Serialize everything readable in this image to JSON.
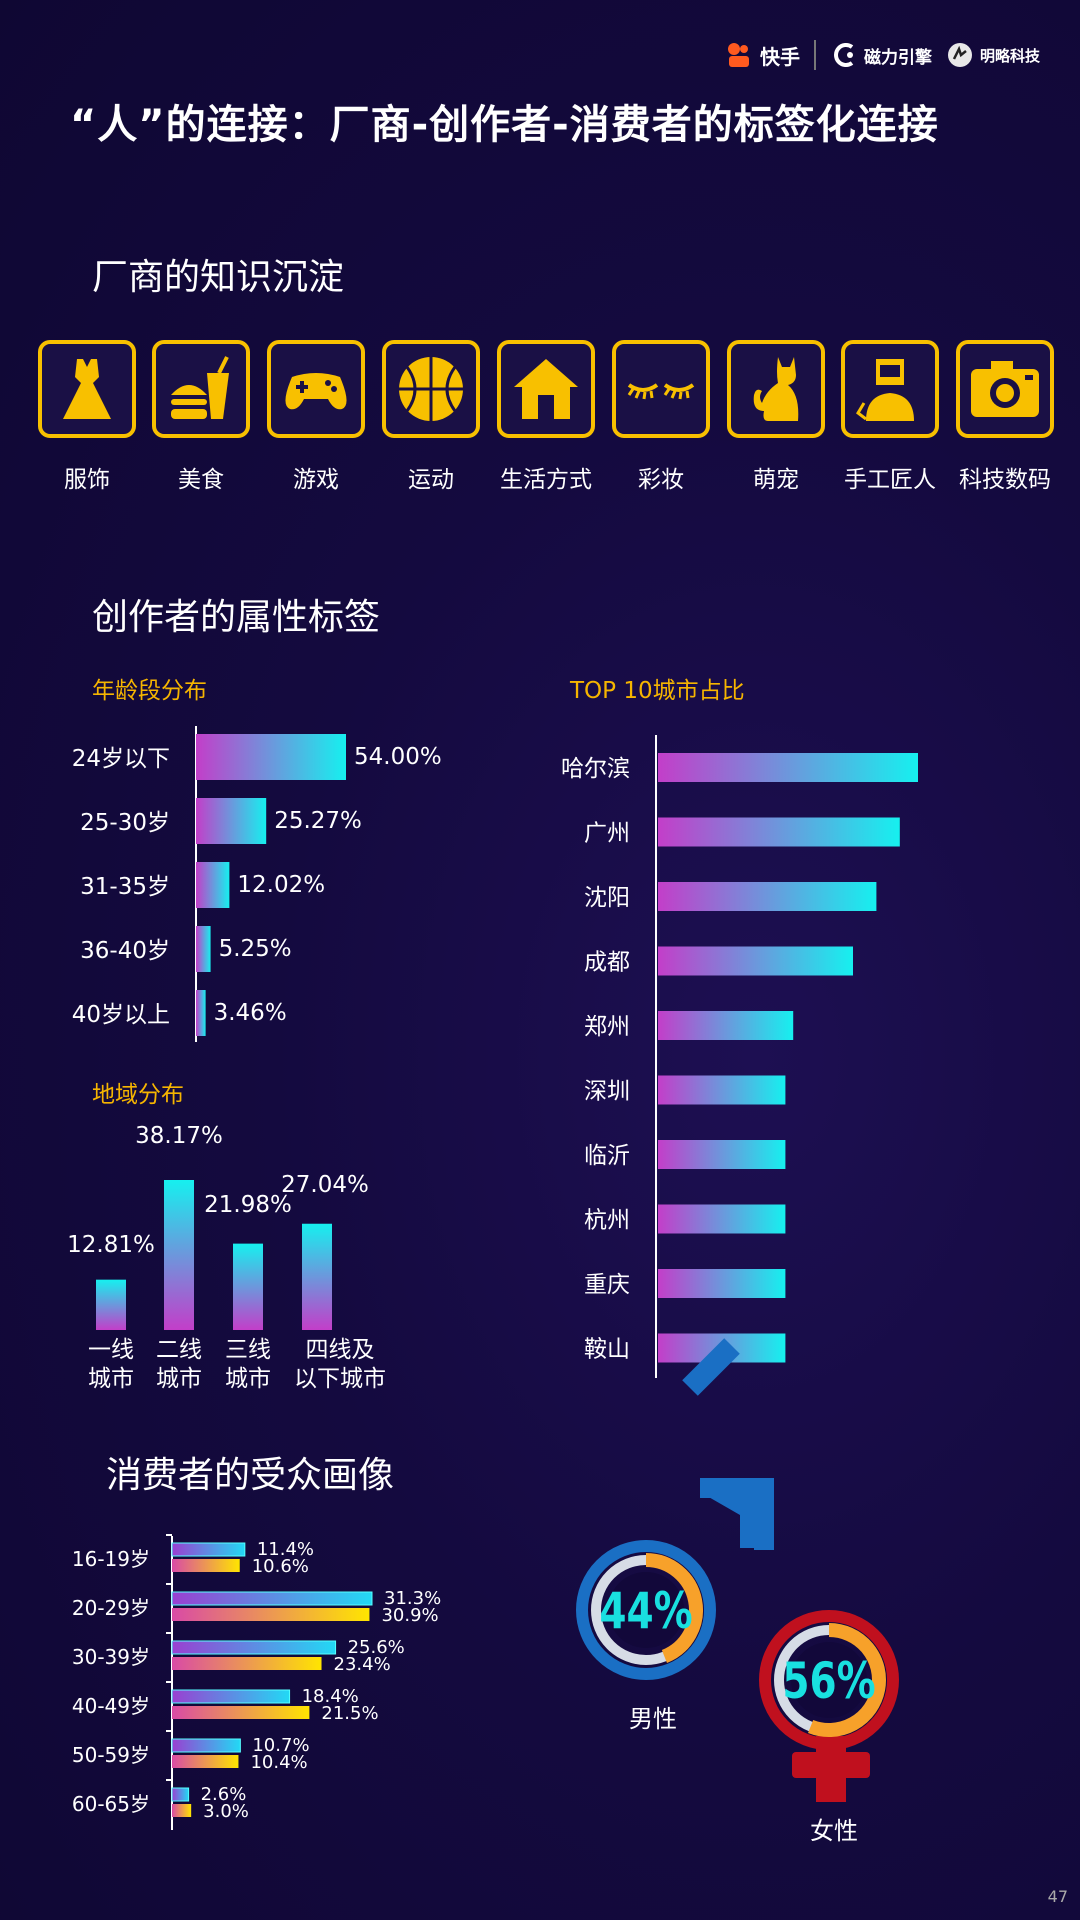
{
  "header": {
    "logos": [
      "快手",
      "磁力引擎",
      "明略科技"
    ],
    "title": "“人”的连接：厂商-创作者-消费者的标签化连接",
    "page_number": "47"
  },
  "sections": {
    "vendor": "厂商的知识沉淀",
    "creator": "创作者的属性标签",
    "consumer": "消费者的受众画像"
  },
  "categories": [
    {
      "label": "服饰",
      "icon": "dress-icon"
    },
    {
      "label": "美食",
      "icon": "food-icon"
    },
    {
      "label": "游戏",
      "icon": "gamepad-icon"
    },
    {
      "label": "运动",
      "icon": "basketball-icon"
    },
    {
      "label": "生活方式",
      "icon": "house-icon"
    },
    {
      "label": "彩妆",
      "icon": "eyelash-icon"
    },
    {
      "label": "萌宠",
      "icon": "cat-icon"
    },
    {
      "label": "手工匠人",
      "icon": "craftsman-icon"
    },
    {
      "label": "科技数码",
      "icon": "camera-icon"
    }
  ],
  "colors": {
    "accent": "#f8c000",
    "gradient_start": "#c33ec9",
    "gradient_end": "#16f0ef",
    "male": "#1a6fc4",
    "female": "#c0101e",
    "donut_text": "#19e0e0"
  },
  "chart_data": [
    {
      "id": "age",
      "type": "bar",
      "orientation": "horizontal",
      "title": "年龄段分布",
      "categories": [
        "24岁以下",
        "25-30岁",
        "31-35岁",
        "36-40岁",
        "40岁以上"
      ],
      "values": [
        54.0,
        25.27,
        12.02,
        5.25,
        3.46
      ],
      "labels": [
        "54.00%",
        "25.27%",
        "12.02%",
        "5.25%",
        "3.46%"
      ]
    },
    {
      "id": "region",
      "type": "bar",
      "orientation": "vertical",
      "title": "地域分布",
      "categories": [
        [
          "一线",
          "城市"
        ],
        [
          "二线",
          "城市"
        ],
        [
          "三线",
          "城市"
        ],
        [
          "四线及",
          "以下城市"
        ]
      ],
      "values": [
        12.81,
        38.17,
        21.98,
        27.04
      ],
      "labels": [
        "12.81%",
        "38.17%",
        "21.98%",
        "27.04%"
      ]
    },
    {
      "id": "city",
      "type": "bar",
      "orientation": "horizontal",
      "title": "TOP 10城市占比",
      "categories": [
        "哈尔滨",
        "广州",
        "沈阳",
        "成都",
        "郑州",
        "深圳",
        "临沂",
        "杭州",
        "重庆",
        "鞍山"
      ],
      "values": [
        10.0,
        9.3,
        8.4,
        7.5,
        5.2,
        4.9,
        4.9,
        4.9,
        4.9,
        4.9
      ]
    },
    {
      "id": "consumer-age",
      "type": "bar",
      "orientation": "horizontal",
      "categories": [
        "16-19岁",
        "20-29岁",
        "30-39岁",
        "40-49岁",
        "50-59岁",
        "60-65岁"
      ],
      "series": [
        {
          "values": [
            11.4,
            31.3,
            25.6,
            18.4,
            10.7,
            2.6
          ],
          "labels": [
            "11.4%",
            "31.3%",
            "25.6%",
            "18.4%",
            "10.7%",
            "2.6%"
          ]
        },
        {
          "values": [
            10.6,
            30.9,
            23.4,
            21.5,
            10.4,
            3.0
          ],
          "labels": [
            "10.6%",
            "30.9%",
            "23.4%",
            "21.5%",
            "10.4%",
            "3.0%"
          ]
        }
      ]
    },
    {
      "id": "gender",
      "type": "pie",
      "categories": [
        "男性",
        "女性"
      ],
      "values": [
        44,
        56
      ],
      "labels": [
        "44%",
        "56%"
      ]
    }
  ]
}
